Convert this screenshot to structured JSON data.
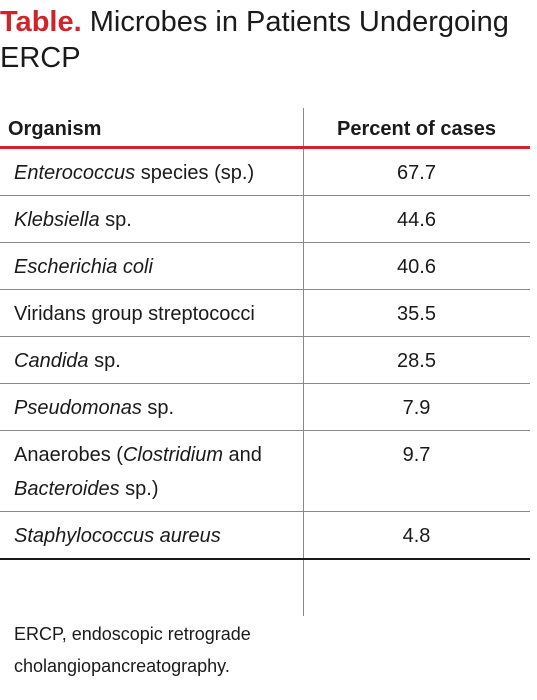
{
  "title": {
    "label": "Table.",
    "text": "Microbes in Patients Undergoing ERCP"
  },
  "table": {
    "headers": [
      "Organism",
      "Percent of cases"
    ],
    "rows": [
      {
        "organism": [
          {
            "t": "Enterococcus",
            "i": true
          },
          {
            "t": " species (sp.)",
            "i": false
          }
        ],
        "percent": "67.7"
      },
      {
        "organism": [
          {
            "t": "Klebsiella",
            "i": true
          },
          {
            "t": " sp.",
            "i": false
          }
        ],
        "percent": "44.6"
      },
      {
        "organism": [
          {
            "t": "Escherichia coli",
            "i": true
          }
        ],
        "percent": "40.6"
      },
      {
        "organism": [
          {
            "t": "Viridans group streptococci",
            "i": false
          }
        ],
        "percent": "35.5"
      },
      {
        "organism": [
          {
            "t": "Candida",
            "i": true
          },
          {
            "t": " sp.",
            "i": false
          }
        ],
        "percent": "28.5"
      },
      {
        "organism": [
          {
            "t": "Pseudomonas",
            "i": true
          },
          {
            "t": " sp.",
            "i": false
          }
        ],
        "percent": "7.9"
      },
      {
        "organism": [
          {
            "t": "Anaerobes (",
            "i": false
          },
          {
            "t": "Clostridium",
            "i": true
          },
          {
            "t": " and ",
            "i": false
          },
          {
            "t": "Bacteroides",
            "i": true
          },
          {
            "t": " sp.)",
            "i": false
          }
        ],
        "percent": "9.7"
      },
      {
        "organism": [
          {
            "t": "Staphylococcus aureus",
            "i": true
          }
        ],
        "percent": "4.8"
      }
    ]
  },
  "footnote": "ERCP, endoscopic retrograde cholangiopancreatography.",
  "colors": {
    "accent": "#d1232a",
    "text": "#1a1a1a",
    "rule": "#8a8a8a"
  }
}
